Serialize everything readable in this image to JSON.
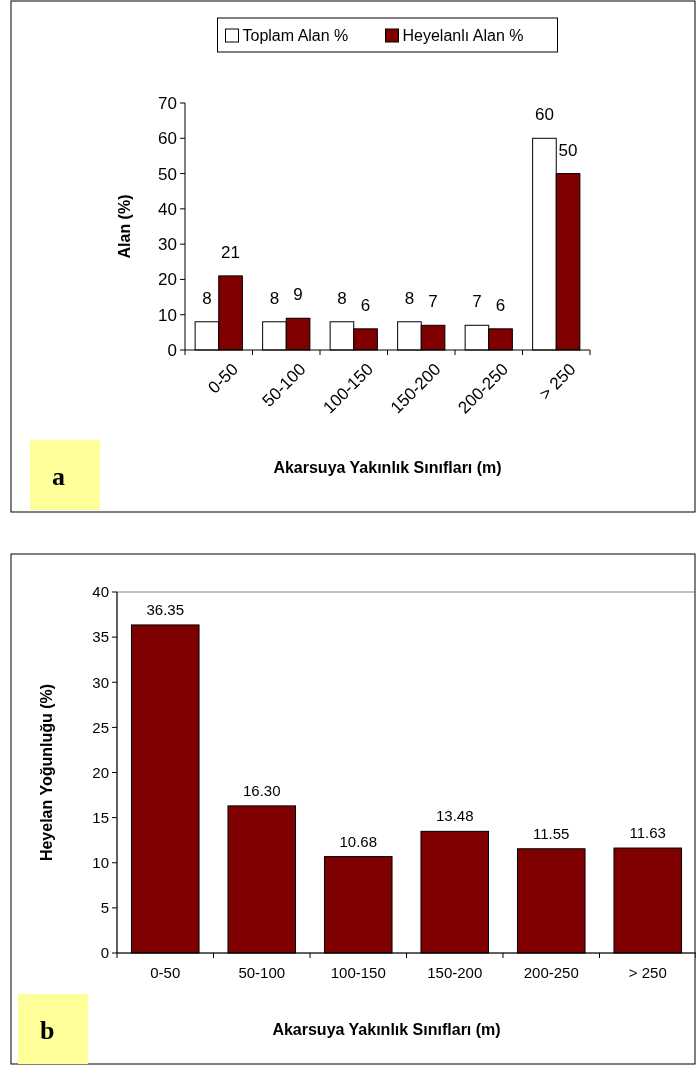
{
  "chart_data": [
    {
      "type": "bar",
      "categories": [
        "0-50",
        "50-100",
        "100-150",
        "150-200",
        "200-250",
        "> 250"
      ],
      "xlabel": "Akarsuya Yakınlık Sınıfları (m)",
      "ylabel": "Alan (%)",
      "ylim": [
        0,
        70
      ],
      "yticks": [
        0,
        10,
        20,
        30,
        40,
        50,
        60,
        70
      ],
      "grid": false,
      "legend": "top",
      "data_labels": true,
      "annotations": [
        "a"
      ],
      "series": [
        {
          "name": "Toplam Alan %",
          "color": "#ffffff",
          "values": [
            8,
            8,
            8,
            8,
            7,
            60
          ]
        },
        {
          "name": "Heyelanlı Alan %",
          "color": "#800000",
          "values": [
            21,
            9,
            6,
            7,
            6,
            50
          ]
        }
      ]
    },
    {
      "type": "bar",
      "categories": [
        "0-50",
        "50-100",
        "100-150",
        "150-200",
        "200-250",
        "> 250"
      ],
      "xlabel": "Akarsuya Yakınlık Sınıfları (m)",
      "ylabel": "Heyelan Yoğunluğu (%)",
      "ylim": [
        0,
        40
      ],
      "yticks": [
        0,
        5,
        10,
        15,
        20,
        25,
        30,
        35,
        40
      ],
      "grid": false,
      "legend": false,
      "annotations": [
        "b"
      ],
      "series": [
        {
          "color": "#7f0000",
          "values": [
            36.35,
            16.3,
            10.68,
            13.48,
            11.55,
            11.63
          ],
          "value_labels": [
            "36.35",
            "16.30",
            "10.68",
            "13.48",
            "11.55",
            "11.63"
          ]
        }
      ]
    }
  ]
}
